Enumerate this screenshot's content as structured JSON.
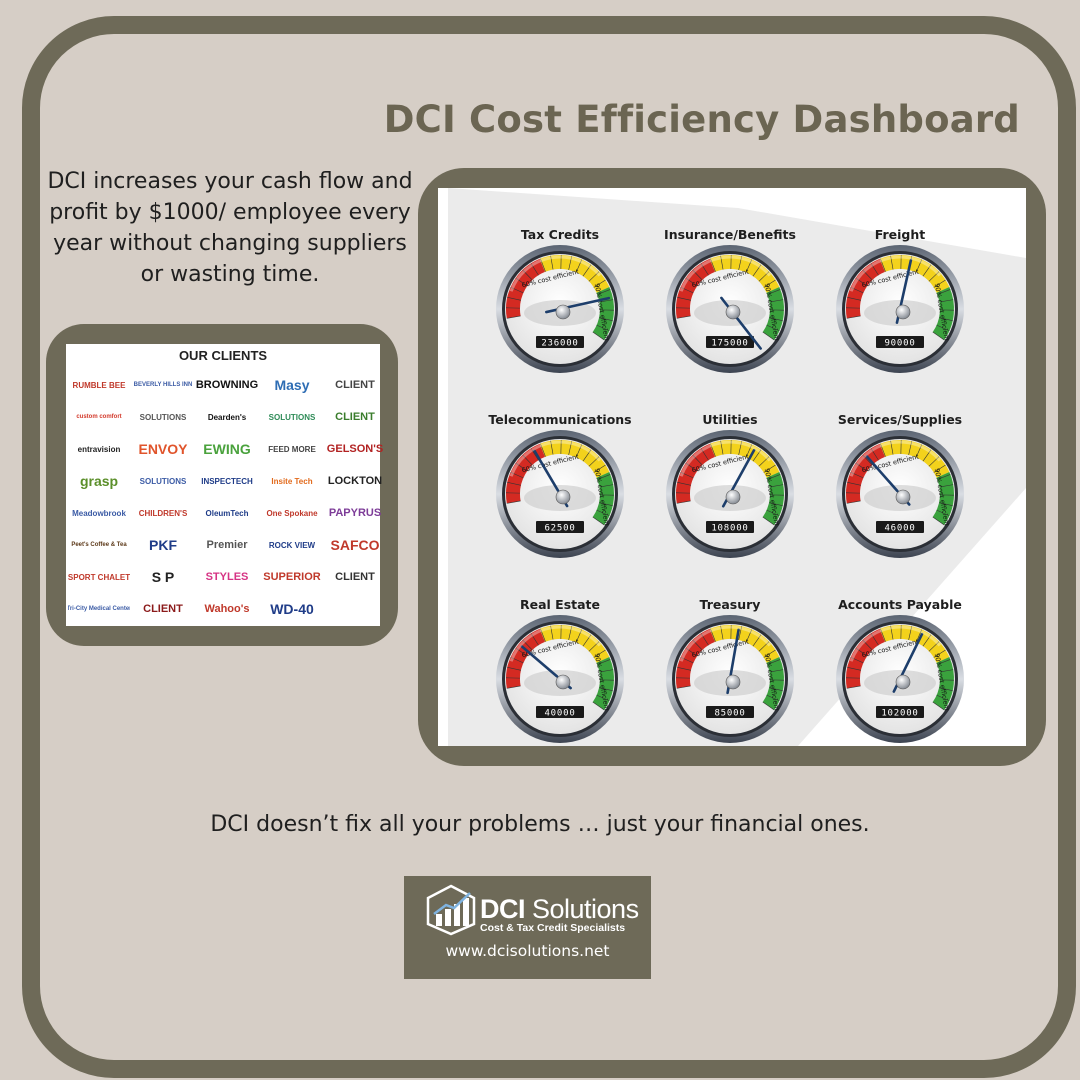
{
  "title": "DCI Cost Efficiency Dashboard",
  "intro": "DCI increases your cash flow and profit by $1000/ employee every year without changing suppliers or wasting time.",
  "clients": {
    "title": "OUR CLIENTS",
    "logos": [
      {
        "text": "RUMBLE BEE",
        "color": "#c0392b"
      },
      {
        "text": "BEVERLY HILLS INN",
        "color": "#3b5ba5"
      },
      {
        "text": "BROWNING",
        "color": "#111111"
      },
      {
        "text": "Masy",
        "color": "#2e6db4"
      },
      {
        "text": "CLIENT",
        "color": "#444444"
      },
      {
        "text": "custom comfort",
        "color": "#d33a2c"
      },
      {
        "text": "SOLUTIONS",
        "color": "#555555"
      },
      {
        "text": "Dearden's",
        "color": "#111111"
      },
      {
        "text": "SOLUTIONS",
        "color": "#2e8b57"
      },
      {
        "text": "CLIENT",
        "color": "#3a7d2c"
      },
      {
        "text": "entravision",
        "color": "#222222"
      },
      {
        "text": "ENVOY",
        "color": "#e0542b"
      },
      {
        "text": "EWING",
        "color": "#4aa23d"
      },
      {
        "text": "FEED MORE",
        "color": "#444444"
      },
      {
        "text": "GELSON'S",
        "color": "#b22222"
      },
      {
        "text": "grasp",
        "color": "#5b8f2a"
      },
      {
        "text": "SOLUTIONS",
        "color": "#3b5ba5"
      },
      {
        "text": "INSPECTECH",
        "color": "#1f3c88"
      },
      {
        "text": "Insite Tech",
        "color": "#e26a1c"
      },
      {
        "text": "LOCKTON",
        "color": "#222222"
      },
      {
        "text": "Meadowbrook",
        "color": "#3b5ba5"
      },
      {
        "text": "CHILDREN'S",
        "color": "#c0392b"
      },
      {
        "text": "OleumTech",
        "color": "#1f3c88"
      },
      {
        "text": "One Spokane",
        "color": "#c0392b"
      },
      {
        "text": "PAPYRUS",
        "color": "#7d3c98"
      },
      {
        "text": "Peet's Coffee & Tea",
        "color": "#5d3a1a"
      },
      {
        "text": "PKF",
        "color": "#1f3c88"
      },
      {
        "text": "Premier",
        "color": "#555555"
      },
      {
        "text": "ROCK VIEW",
        "color": "#1f3c88"
      },
      {
        "text": "SAFCO",
        "color": "#c0392b"
      },
      {
        "text": "SPORT CHALET",
        "color": "#c0392b"
      },
      {
        "text": "S P",
        "color": "#222222"
      },
      {
        "text": "STYLES",
        "color": "#d63384"
      },
      {
        "text": "SUPERIOR",
        "color": "#c0392b"
      },
      {
        "text": "CLIENT",
        "color": "#333333"
      },
      {
        "text": "Tri-City Medical Center",
        "color": "#3b5ba5"
      },
      {
        "text": "CLIENT",
        "color": "#8b1a1a"
      },
      {
        "text": "Wahoo's",
        "color": "#c0392b"
      },
      {
        "text": "WD-40",
        "color": "#1f3c88"
      }
    ]
  },
  "dashboard": {
    "zone_low_label": "60% cost efficient",
    "zone_high_label": "90% cost efficient",
    "gauges": [
      {
        "label": "Tax Credits",
        "reading": "236000",
        "needle_fraction": 0.62
      },
      {
        "label": "Insurance/Benefits",
        "reading": "175000",
        "needle_fraction": 0.86
      },
      {
        "label": "Freight",
        "reading": "90000",
        "needle_fraction": 0.38
      },
      {
        "label": "Telecommunications",
        "reading": "62500",
        "needle_fraction": 0.22
      },
      {
        "label": "Utilities",
        "reading": "108000",
        "needle_fraction": 0.44
      },
      {
        "label": "Services/Supplies",
        "reading": "46000",
        "needle_fraction": 0.18
      },
      {
        "label": "Real Estate",
        "reading": "40000",
        "needle_fraction": 0.15
      },
      {
        "label": "Treasury",
        "reading": "85000",
        "needle_fraction": 0.37
      },
      {
        "label": "Accounts Payable",
        "reading": "102000",
        "needle_fraction": 0.43
      }
    ]
  },
  "colors": {
    "frame": "#6e6a58",
    "background": "#d6cec6",
    "gauge_red": "#d42a22",
    "gauge_yellow": "#f3d21c",
    "gauge_green": "#3aa23d",
    "needle": "#1d3e6b"
  },
  "tagline": "DCI doesn’t fix all your problems … just your financial ones.",
  "brand": {
    "name_bold": "DCI",
    "name_rest": " Solutions",
    "subtitle": "Cost & Tax Credit Specialists",
    "url": "www.dcisolutions.net"
  }
}
